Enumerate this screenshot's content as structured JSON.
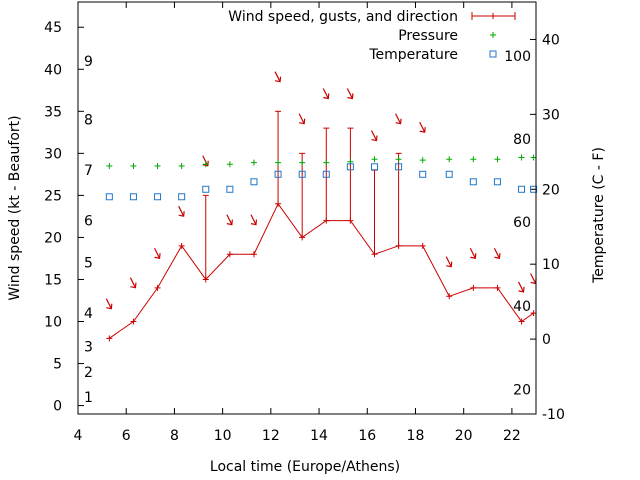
{
  "chart_data": {
    "type": "line",
    "xlabel": "Local time (Europe/Athens)",
    "ylabel": "Wind speed (kt - Beaufort)",
    "y2label": "Temperature (C - F)",
    "xlim": [
      4,
      23
    ],
    "ylim": [
      -1,
      48
    ],
    "y2lim": [
      -10,
      45
    ],
    "x_ticks": [
      4,
      6,
      8,
      10,
      12,
      14,
      16,
      18,
      20,
      22
    ],
    "y_ticks": [
      0,
      5,
      10,
      15,
      20,
      25,
      30,
      35,
      40,
      45
    ],
    "y2_ticks": [
      -10,
      0,
      10,
      20,
      30,
      40
    ],
    "beaufort_labels": [
      {
        "label": "1",
        "kt": 1
      },
      {
        "label": "2",
        "kt": 4
      },
      {
        "label": "3",
        "kt": 7
      },
      {
        "label": "4",
        "kt": 11
      },
      {
        "label": "5",
        "kt": 17
      },
      {
        "label": "6",
        "kt": 22
      },
      {
        "label": "7",
        "kt": 28
      },
      {
        "label": "8",
        "kt": 34
      },
      {
        "label": "9",
        "kt": 41
      }
    ],
    "fahrenheit_labels": [
      {
        "label": "20",
        "c": -6.7
      },
      {
        "label": "40",
        "c": 4.4
      },
      {
        "label": "60",
        "c": 15.6
      },
      {
        "label": "80",
        "c": 26.7
      },
      {
        "label": "100",
        "c": 37.8
      }
    ],
    "legend": [
      {
        "name": "Wind speed, gusts, and direction",
        "color": "#cc0000"
      },
      {
        "name": "Pressure",
        "color": "#00aa00"
      },
      {
        "name": "Temperature",
        "color": "#1f77c8"
      }
    ],
    "colors": {
      "wind": "#cc0000",
      "pressure": "#00aa00",
      "temperature": "#1f77c8"
    },
    "wind": {
      "x": [
        5.3,
        6.3,
        7.3,
        8.3,
        9.3,
        10.3,
        11.3,
        12.3,
        13.3,
        14.3,
        15.3,
        16.3,
        17.3,
        18.3,
        19.4,
        20.4,
        21.4,
        22.4,
        22.9
      ],
      "speed": [
        8,
        10,
        14,
        19,
        15,
        18,
        18,
        24,
        20,
        22,
        22,
        18,
        19,
        19,
        13,
        14,
        14,
        10,
        11
      ],
      "gust": [
        8,
        10,
        14,
        19,
        25,
        18,
        18,
        35,
        30,
        33,
        33,
        28,
        30,
        19,
        13,
        14,
        14,
        10,
        11
      ]
    },
    "direction_arrows": {
      "x": [
        5.3,
        6.3,
        7.3,
        8.3,
        9.3,
        10.3,
        11.3,
        12.3,
        13.3,
        14.3,
        15.3,
        16.3,
        17.3,
        18.3,
        19.4,
        20.4,
        21.4,
        22.4,
        22.9
      ],
      "kt": [
        12,
        14.5,
        18,
        23,
        29,
        22,
        22,
        39,
        34,
        37,
        37,
        32,
        34,
        33,
        17,
        18,
        18,
        14,
        15
      ]
    },
    "pressure": {
      "x": [
        5.3,
        6.3,
        7.3,
        8.3,
        9.3,
        10.3,
        11.3,
        12.3,
        13.3,
        14.3,
        15.3,
        16.3,
        17.3,
        18.3,
        19.4,
        20.4,
        21.4,
        22.4,
        22.9
      ],
      "kt": [
        28.5,
        28.5,
        28.5,
        28.5,
        28.7,
        28.7,
        28.9,
        28.9,
        28.9,
        28.9,
        29.0,
        29.3,
        29.3,
        29.2,
        29.3,
        29.3,
        29.3,
        29.5,
        29.5
      ]
    },
    "temperature": {
      "x": [
        5.3,
        6.3,
        7.3,
        8.3,
        9.3,
        10.3,
        11.3,
        12.3,
        13.3,
        14.3,
        15.3,
        16.3,
        17.3,
        18.3,
        19.4,
        20.4,
        21.4,
        22.4,
        22.9
      ],
      "c": [
        19,
        19,
        19,
        19,
        20,
        20,
        21,
        22,
        22,
        22,
        23,
        23,
        23,
        22,
        22,
        21,
        21,
        20,
        20
      ]
    }
  }
}
